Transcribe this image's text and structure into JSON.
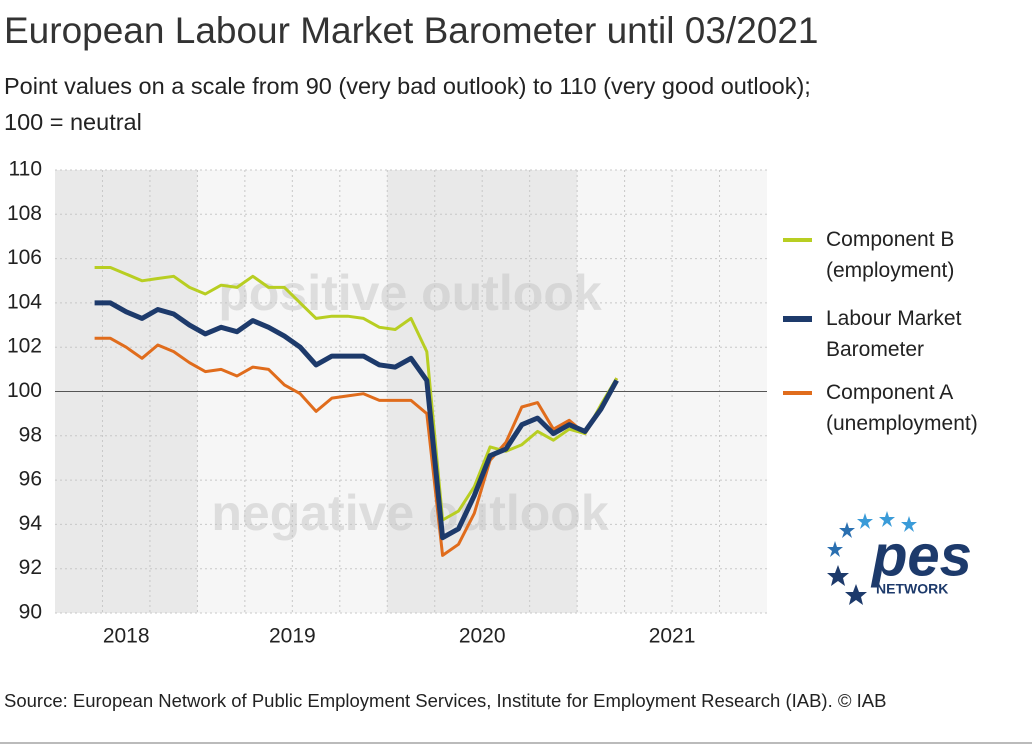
{
  "chart_data": {
    "type": "line",
    "title": "European Labour Market Barometer until 03/2021",
    "subtitle": [
      "Point values on a scale from 90 (very bad outlook) to 110 (very good outlook);",
      "100 = neutral"
    ],
    "annotations": [
      "positive outlook",
      "negative outlook"
    ],
    "source": "Source: European Network of Public Employment Services, Institute for Employment Research (IAB).  © IAB",
    "logo": {
      "title": "pes",
      "subtitle": "NETWORK"
    },
    "x": [
      0,
      1,
      2,
      3,
      4,
      5,
      6,
      7,
      8,
      9,
      10,
      11,
      12,
      13,
      14,
      15,
      16,
      17,
      18,
      19,
      20,
      21,
      22,
      23,
      24,
      25,
      26,
      27,
      28,
      29,
      30,
      31,
      32,
      33
    ],
    "xlim": [
      -2.5,
      42.5
    ],
    "xticks": [
      {
        "value": 0.5,
        "label": "2018"
      },
      {
        "value": 12.5,
        "label": "2019"
      },
      {
        "value": 24.5,
        "label": "2020"
      },
      {
        "value": 36.5,
        "label": "2021"
      }
    ],
    "ylim": [
      90,
      110
    ],
    "yticks": [
      90,
      92,
      94,
      96,
      98,
      100,
      102,
      104,
      106,
      108,
      110
    ],
    "reference_line": 100,
    "grid": true,
    "series": [
      {
        "name": "Component B (employment)",
        "color": "#b8ce22",
        "values": [
          105.6,
          105.6,
          105.3,
          105.0,
          105.1,
          105.2,
          104.7,
          104.4,
          104.8,
          104.7,
          105.2,
          104.7,
          104.7,
          104.0,
          103.3,
          103.4,
          103.4,
          103.3,
          102.9,
          102.8,
          103.3,
          101.8,
          94.2,
          94.6,
          95.7,
          97.5,
          97.3,
          97.6,
          98.2,
          97.8,
          98.3,
          98.1,
          99.4,
          100.6
        ]
      },
      {
        "name": "Labour Market Barometer",
        "color": "#1d3a6b",
        "values": [
          104.0,
          104.0,
          103.6,
          103.3,
          103.7,
          103.5,
          103.0,
          102.6,
          102.9,
          102.7,
          103.2,
          102.9,
          102.5,
          102.0,
          101.2,
          101.6,
          101.6,
          101.6,
          101.2,
          101.1,
          101.5,
          100.5,
          93.4,
          93.8,
          95.3,
          97.1,
          97.4,
          98.5,
          98.8,
          98.1,
          98.5,
          98.2,
          99.2,
          100.5
        ]
      },
      {
        "name": "Component A (unemployment)",
        "color": "#e06c1c",
        "values": [
          102.4,
          102.4,
          102.0,
          101.5,
          102.1,
          101.8,
          101.3,
          100.9,
          101.0,
          100.7,
          101.1,
          101.0,
          100.3,
          99.9,
          99.1,
          99.7,
          99.8,
          99.9,
          99.6,
          99.6,
          99.6,
          99.0,
          92.6,
          93.1,
          94.5,
          96.9,
          97.7,
          99.3,
          99.5,
          98.3,
          98.7,
          98.1,
          99.2,
          100.6
        ]
      }
    ]
  }
}
